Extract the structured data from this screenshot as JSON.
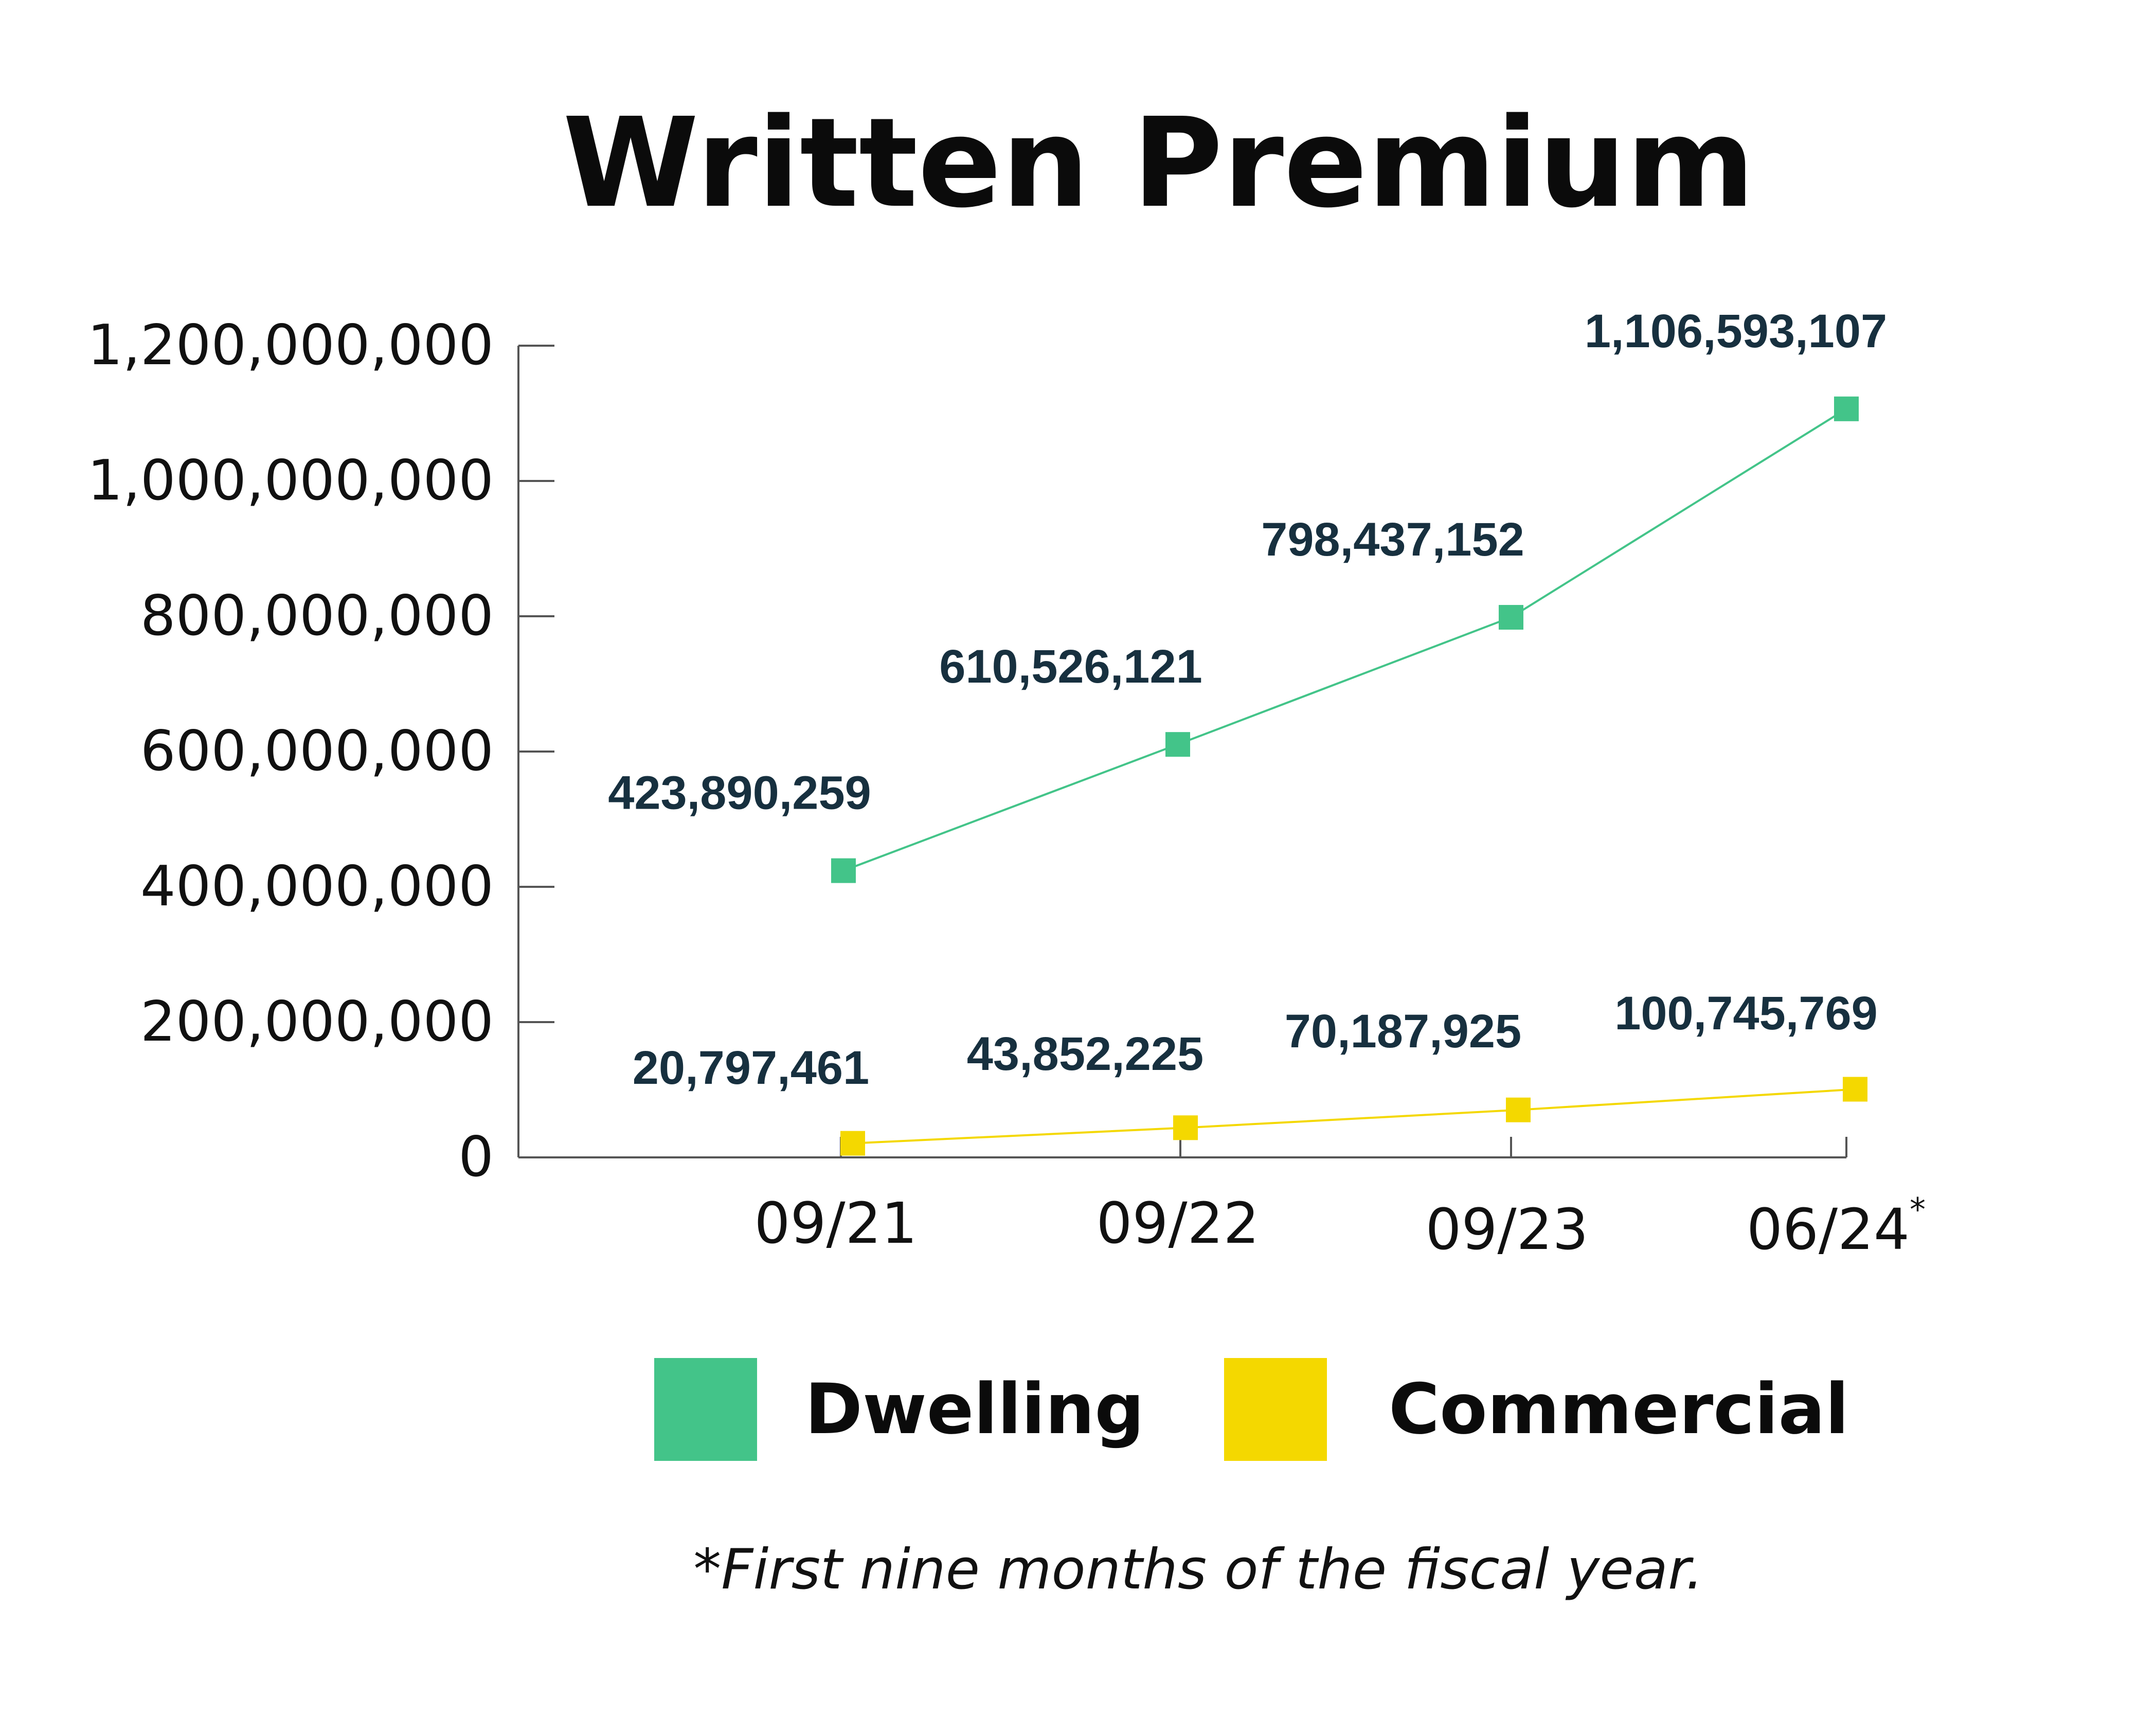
{
  "chart_data": {
    "type": "line",
    "title": "Written Premium",
    "categories": [
      "09/21",
      "09/22",
      "09/23",
      "06/24"
    ],
    "category_marks": [
      "",
      "",
      "",
      "*"
    ],
    "ylim": [
      0,
      1200000000
    ],
    "yticks": [
      0,
      200000000,
      400000000,
      600000000,
      800000000,
      1000000000,
      1200000000
    ],
    "ytick_labels": [
      "0",
      "200,000,000",
      "400,000,000",
      "600,000,000",
      "800,000,000",
      "1,000,000,000",
      "1,200,000,000"
    ],
    "grid": false,
    "legend_position": "bottom",
    "series": [
      {
        "name": "Dwelling",
        "color": "#43c489",
        "values": [
          423890259,
          610526121,
          798437152,
          1106593107
        ],
        "labels": [
          "423,890,259",
          "610,526,121",
          "798,437,152",
          "1,106,593,107"
        ]
      },
      {
        "name": "Commercial",
        "color": "#f4d800",
        "values": [
          20797461,
          43852225,
          70187925,
          100745769
        ],
        "labels": [
          "20,797,461",
          "43,852,225",
          "70,187,925",
          "100,745,769"
        ]
      }
    ],
    "footnote": "*First nine months of the fiscal year."
  }
}
